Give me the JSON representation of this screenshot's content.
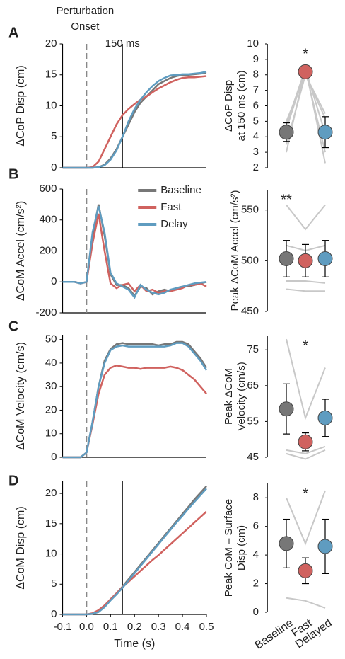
{
  "chart_data": [
    {
      "type": "line",
      "label": "A",
      "ylabel": "ΔCoP Disp (cm)",
      "onset_label": [
        "Perturbation",
        "Onset"
      ],
      "marker_label": "150 ms",
      "xlim": [
        -0.1,
        0.5
      ],
      "ylim": [
        0,
        20
      ],
      "yticks": [
        0,
        5,
        10,
        15,
        20
      ],
      "vlines": [
        {
          "x": 0,
          "dashed": true
        },
        {
          "x": 0.15,
          "dashed": false
        }
      ],
      "x": [
        -0.1,
        -0.075,
        -0.05,
        -0.025,
        0,
        0.025,
        0.05,
        0.075,
        0.1,
        0.125,
        0.15,
        0.175,
        0.2,
        0.225,
        0.25,
        0.275,
        0.3,
        0.325,
        0.35,
        0.375,
        0.4,
        0.425,
        0.45,
        0.475,
        0.5
      ],
      "series": [
        {
          "color": "#777777",
          "values": [
            0,
            0,
            0,
            0,
            0,
            0,
            0.1,
            0.5,
            1.5,
            3,
            5,
            7,
            9,
            10.5,
            11.5,
            12.5,
            13.5,
            14,
            14.5,
            14.8,
            15,
            15,
            15.1,
            15.2,
            15.3
          ]
        },
        {
          "color": "#d0625f",
          "values": [
            0,
            0,
            0,
            0,
            0,
            0.1,
            1,
            3,
            5,
            7,
            8.5,
            9.5,
            10.3,
            11,
            11.5,
            12.2,
            12.8,
            13.3,
            13.8,
            14.2,
            14.5,
            14.6,
            14.6,
            14.7,
            14.8
          ]
        },
        {
          "color": "#5f9cc0",
          "values": [
            0,
            0,
            0,
            0,
            0,
            0,
            0.1,
            0.4,
            1.3,
            2.8,
            5,
            7.5,
            9.5,
            11,
            12.2,
            13.2,
            14,
            14.5,
            14.9,
            15,
            15.1,
            15.1,
            15.2,
            15.3,
            15.5
          ]
        }
      ]
    },
    {
      "type": "dot",
      "ylabel": [
        "ΔCoP Disp",
        "at 150 ms (cm)"
      ],
      "ylim": [
        2,
        10
      ],
      "yticks": [
        2,
        3,
        4,
        5,
        6,
        7,
        8,
        9,
        10
      ],
      "categories": [
        null,
        null,
        null
      ],
      "colors": [
        "#777777",
        "#d0625f",
        "#5f9cc0"
      ],
      "values": [
        4.3,
        8.2,
        4.3
      ],
      "errors": [
        0.6,
        0.2,
        1.0
      ],
      "significance": "*",
      "significance_category": 1,
      "subjects": [
        [
          5,
          8,
          5.2
        ],
        [
          4.5,
          8.3,
          3
        ],
        [
          3,
          8.5,
          2.3
        ],
        [
          3.5,
          8,
          5.5
        ],
        [
          4.8,
          8.4,
          4.2
        ]
      ]
    },
    {
      "type": "line",
      "label": "B",
      "ylabel": "ΔCoM Accel (cm/s²)",
      "legend": "top-center",
      "xlim": [
        -0.1,
        0.5
      ],
      "ylim": [
        -200,
        600
      ],
      "yticks": [
        -200,
        0,
        200,
        400,
        600
      ],
      "vlines": [
        {
          "x": 0,
          "dashed": true
        }
      ],
      "x": [
        -0.1,
        -0.075,
        -0.05,
        -0.025,
        0,
        0.025,
        0.05,
        0.075,
        0.1,
        0.125,
        0.15,
        0.175,
        0.2,
        0.225,
        0.25,
        0.275,
        0.3,
        0.325,
        0.35,
        0.375,
        0.4,
        0.425,
        0.45,
        0.475,
        0.5
      ],
      "series": [
        {
          "name": "Baseline",
          "color": "#777777",
          "values": [
            0,
            0,
            0,
            -10,
            0,
            300,
            500,
            300,
            50,
            -20,
            -20,
            -40,
            -90,
            -30,
            -40,
            -80,
            -60,
            -50,
            -60,
            -40,
            -30,
            -30,
            -20,
            -10,
            0
          ]
        },
        {
          "name": "Fast",
          "color": "#d0625f",
          "values": [
            0,
            0,
            0,
            -10,
            0,
            250,
            440,
            200,
            -10,
            -40,
            -20,
            -10,
            -60,
            -20,
            -60,
            -50,
            -70,
            -60,
            -60,
            -50,
            -40,
            -20,
            -20,
            -10,
            -30
          ]
        },
        {
          "name": "Delay",
          "color": "#5f9cc0",
          "values": [
            0,
            0,
            0,
            -10,
            0,
            320,
            490,
            320,
            60,
            -10,
            -30,
            -50,
            -100,
            -20,
            -50,
            -70,
            -80,
            -70,
            -50,
            -40,
            -30,
            -20,
            -10,
            -5,
            0
          ]
        }
      ]
    },
    {
      "type": "dot",
      "ylabel": [
        "Peak ΔCoM Accel (cm/s²)"
      ],
      "ylim": [
        450,
        570
      ],
      "yticks": [
        450,
        500,
        550
      ],
      "categories": [
        null,
        null,
        null
      ],
      "colors": [
        "#777777",
        "#d0625f",
        "#5f9cc0"
      ],
      "values": [
        502,
        500,
        502
      ],
      "errors": [
        18,
        16,
        18
      ],
      "significance": "**",
      "significance_category": 0,
      "subjects": [
        [
          555,
          531,
          555
        ],
        [
          515,
          510,
          515
        ],
        [
          480,
          480,
          478
        ],
        [
          472,
          470,
          470
        ]
      ]
    },
    {
      "type": "line",
      "label": "C",
      "ylabel": "ΔCoM Velocity (cm/s)",
      "xlim": [
        -0.1,
        0.5
      ],
      "ylim": [
        0,
        52
      ],
      "yticks": [
        0,
        10,
        20,
        30,
        40,
        50
      ],
      "vlines": [
        {
          "x": 0,
          "dashed": true
        }
      ],
      "x": [
        -0.1,
        -0.075,
        -0.05,
        -0.025,
        0,
        0.025,
        0.05,
        0.075,
        0.1,
        0.125,
        0.15,
        0.175,
        0.2,
        0.225,
        0.25,
        0.275,
        0.3,
        0.325,
        0.35,
        0.375,
        0.4,
        0.425,
        0.45,
        0.475,
        0.5
      ],
      "series": [
        {
          "color": "#777777",
          "values": [
            0,
            0,
            0,
            0,
            2,
            15,
            30,
            41,
            46,
            48,
            48.5,
            48,
            48,
            48,
            48,
            48,
            47.5,
            48,
            48,
            49,
            49,
            48,
            45,
            42,
            38
          ]
        },
        {
          "color": "#d0625f",
          "values": [
            0,
            0,
            0,
            0,
            2,
            14,
            27,
            35,
            38,
            39,
            38.5,
            38,
            38,
            37.5,
            38,
            38,
            38,
            38,
            38.5,
            38,
            37,
            35,
            33,
            30,
            27
          ]
        },
        {
          "color": "#5f9cc0",
          "values": [
            0,
            0,
            0,
            0,
            2,
            15,
            30,
            40,
            45.5,
            47,
            47.5,
            47,
            47,
            47,
            47,
            47,
            47,
            47,
            47.5,
            48.5,
            48.5,
            47,
            44,
            41,
            37
          ]
        }
      ]
    },
    {
      "type": "dot",
      "ylabel": [
        "Peak ΔCoM",
        "Velocity (cm/s)"
      ],
      "ylim": [
        45,
        79
      ],
      "yticks": [
        45,
        55,
        65,
        75
      ],
      "categories": [
        null,
        null,
        null
      ],
      "colors": [
        "#777777",
        "#d0625f",
        "#5f9cc0"
      ],
      "values": [
        58.5,
        49.3,
        56
      ],
      "errors": [
        7,
        2.5,
        5.2
      ],
      "significance": "*",
      "significance_category": 1,
      "subjects": [
        [
          78,
          56,
          70
        ],
        [
          47,
          46,
          48
        ],
        [
          46,
          44.5,
          47
        ]
      ]
    },
    {
      "type": "line",
      "label": "D",
      "ylabel": "ΔCoM Disp (cm)",
      "xlabel": "Time (s)",
      "xlim": [
        -0.1,
        0.5
      ],
      "ylim": [
        0,
        22
      ],
      "yticks": [
        0,
        5,
        10,
        15,
        20
      ],
      "xticks": [
        -0.1,
        {
          "value": 0,
          "label": "0.0"
        },
        0.1,
        0.2,
        0.3,
        0.4,
        0.5
      ],
      "vlines": [
        {
          "x": 0,
          "dashed": true
        },
        {
          "x": 0.15,
          "dashed": false
        }
      ],
      "x": [
        -0.1,
        -0.075,
        -0.05,
        -0.025,
        0,
        0.025,
        0.05,
        0.075,
        0.1,
        0.125,
        0.15,
        0.175,
        0.2,
        0.225,
        0.25,
        0.275,
        0.3,
        0.325,
        0.35,
        0.375,
        0.4,
        0.425,
        0.45,
        0.475,
        0.5
      ],
      "series": [
        {
          "color": "#777777",
          "values": [
            0,
            0,
            0,
            0,
            0,
            0.1,
            0.5,
            1.3,
            2.5,
            3.5,
            4.6,
            5.8,
            7,
            8.2,
            9.4,
            10.6,
            11.8,
            13,
            14.2,
            15.4,
            16.6,
            17.8,
            19,
            20.1,
            21.2
          ]
        },
        {
          "color": "#d0625f",
          "values": [
            0,
            0,
            0,
            0,
            0,
            0.2,
            0.7,
            1.5,
            2.5,
            3.5,
            4.5,
            5.4,
            6.3,
            7.2,
            8.1,
            9,
            9.8,
            10.7,
            11.6,
            12.5,
            13.4,
            14.3,
            15.2,
            16.1,
            17
          ]
        },
        {
          "color": "#5f9cc0",
          "values": [
            0,
            0,
            0,
            0,
            0,
            0.1,
            0.4,
            1.2,
            2.3,
            3.3,
            4.4,
            5.6,
            6.8,
            8,
            9.2,
            10.4,
            11.6,
            12.8,
            14,
            15.2,
            16.3,
            17.5,
            18.6,
            19.7,
            20.8
          ]
        }
      ]
    },
    {
      "type": "dot",
      "ylabel": [
        "Peak CoM – Surface",
        "Disp (cm)"
      ],
      "ylim": [
        0,
        9
      ],
      "yticks": [
        0,
        2,
        4,
        6,
        8
      ],
      "categories": [
        "Baseline",
        "Fast",
        "Delayed"
      ],
      "colors": [
        "#777777",
        "#d0625f",
        "#5f9cc0"
      ],
      "values": [
        4.8,
        2.9,
        4.6
      ],
      "errors": [
        1.7,
        0.9,
        1.9
      ],
      "significance": "*",
      "significance_category": 1,
      "subjects": [
        [
          8,
          4.8,
          8.5
        ],
        [
          1,
          0.8,
          0.3
        ]
      ]
    }
  ]
}
